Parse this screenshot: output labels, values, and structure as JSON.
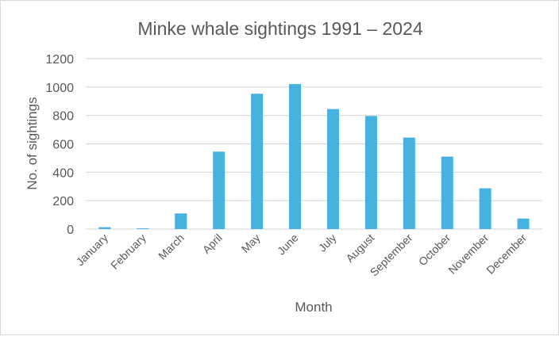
{
  "chart_data": {
    "type": "bar",
    "title": "Minke whale sightings 1991 – 2024",
    "xlabel": "Month",
    "ylabel": "No. of sightings",
    "categories": [
      "January",
      "February",
      "March",
      "April",
      "May",
      "June",
      "July",
      "August",
      "September",
      "October",
      "November",
      "December"
    ],
    "values": [
      13,
      5,
      110,
      545,
      953,
      1021,
      845,
      796,
      644,
      510,
      287,
      74
    ],
    "ylim": [
      0,
      1200
    ],
    "yticks": [
      "0",
      "200",
      "400",
      "600",
      "800",
      "1000",
      "1200"
    ],
    "grid": true,
    "legend": "none",
    "bar_color": "#47b1e0"
  }
}
